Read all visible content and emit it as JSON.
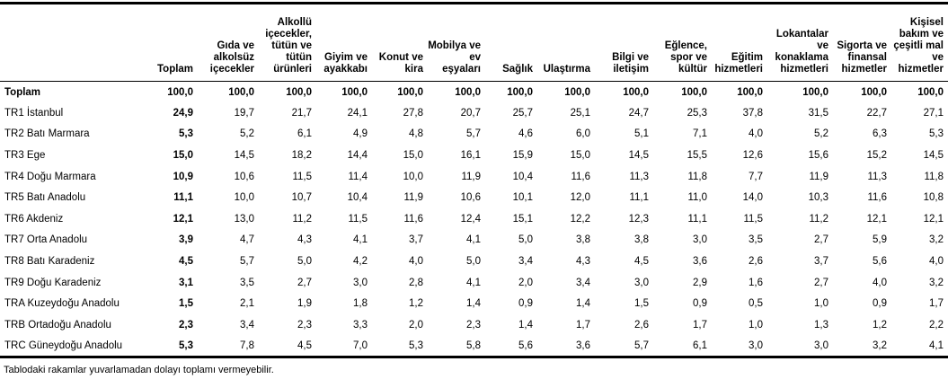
{
  "chart_data": {
    "type": "table",
    "unit": "%",
    "row_header": "",
    "columns": [
      "Toplam",
      "Gıda ve\nalkolsüz\niçecekler",
      "Alkollü\niçecekler,\ntütün ve\ntütün\nürünleri",
      "Giyim ve\nayakkabı",
      "Konut ve\nkira",
      "Mobilya ve\nev\neşyaları",
      "Sağlık",
      "Ulaştırma",
      "Bilgi ve\niletişim",
      "Eğlence,\nspor ve\nkültür",
      "Eğitim\nhizmetleri",
      "Lokantalar\nve\nkonaklama\nhizmetleri",
      "Sigorta ve\nfinansal\nhizmetler",
      "Kişisel\nbakım ve\nçeşitli mal\nve\nhizmetler"
    ],
    "rows": [
      {
        "label": "Toplam",
        "total": true,
        "values": [
          100.0,
          100.0,
          100.0,
          100.0,
          100.0,
          100.0,
          100.0,
          100.0,
          100.0,
          100.0,
          100.0,
          100.0,
          100.0,
          100.0
        ]
      },
      {
        "label": "TR1 İstanbul",
        "values": [
          24.9,
          19.7,
          21.7,
          24.1,
          27.8,
          20.7,
          25.7,
          25.1,
          24.7,
          25.3,
          37.8,
          31.5,
          22.7,
          27.1
        ]
      },
      {
        "label": "TR2 Batı Marmara",
        "values": [
          5.3,
          5.2,
          6.1,
          4.9,
          4.8,
          5.7,
          4.6,
          6.0,
          5.1,
          7.1,
          4.0,
          5.2,
          6.3,
          5.3
        ]
      },
      {
        "label": "TR3 Ege",
        "values": [
          15.0,
          14.5,
          18.2,
          14.4,
          15.0,
          16.1,
          15.9,
          15.0,
          14.5,
          15.5,
          12.6,
          15.6,
          15.2,
          14.5
        ]
      },
      {
        "label": "TR4 Doğu Marmara",
        "values": [
          10.9,
          10.6,
          11.5,
          11.4,
          10.0,
          11.9,
          10.4,
          11.6,
          11.3,
          11.8,
          7.7,
          11.9,
          11.3,
          11.8
        ]
      },
      {
        "label": "TR5 Batı Anadolu",
        "values": [
          11.1,
          10.0,
          10.7,
          10.4,
          11.9,
          10.6,
          10.1,
          12.0,
          11.1,
          11.0,
          14.0,
          10.3,
          11.6,
          10.8
        ]
      },
      {
        "label": "TR6 Akdeniz",
        "values": [
          12.1,
          13.0,
          11.2,
          11.5,
          11.6,
          12.4,
          15.1,
          12.2,
          12.3,
          11.1,
          11.5,
          11.2,
          12.1,
          12.1
        ]
      },
      {
        "label": "TR7 Orta Anadolu",
        "values": [
          3.9,
          4.7,
          4.3,
          4.1,
          3.7,
          4.1,
          5.0,
          3.8,
          3.8,
          3.0,
          3.5,
          2.7,
          5.9,
          3.2
        ]
      },
      {
        "label": "TR8 Batı Karadeniz",
        "values": [
          4.5,
          5.7,
          5.0,
          4.2,
          4.0,
          5.0,
          3.4,
          4.3,
          4.5,
          3.6,
          2.6,
          3.7,
          5.6,
          4.0
        ]
      },
      {
        "label": "TR9 Doğu Karadeniz",
        "values": [
          3.1,
          3.5,
          2.7,
          3.0,
          2.8,
          4.1,
          2.0,
          3.4,
          3.0,
          2.9,
          1.6,
          2.7,
          4.0,
          3.2
        ]
      },
      {
        "label": "TRA Kuzeydoğu Anadolu",
        "values": [
          1.5,
          2.1,
          1.9,
          1.8,
          1.2,
          1.4,
          0.9,
          1.4,
          1.5,
          0.9,
          0.5,
          1.0,
          0.9,
          1.7
        ]
      },
      {
        "label": "TRB Ortadoğu Anadolu",
        "values": [
          2.3,
          3.4,
          2.3,
          3.3,
          2.0,
          2.3,
          1.4,
          1.7,
          2.6,
          1.7,
          1.0,
          1.3,
          1.2,
          2.2
        ]
      },
      {
        "label": "TRC Güneydoğu Anadolu",
        "values": [
          5.3,
          7.8,
          4.5,
          7.0,
          5.3,
          5.8,
          5.6,
          3.6,
          5.7,
          6.1,
          3.0,
          3.0,
          3.2,
          4.1
        ]
      }
    ],
    "footnote": "Tablodaki rakamlar yuvarlamadan dolayı toplamı vermeyebilir.",
    "colors": {
      "text": "#000000",
      "background": "#ffffff",
      "border": "#000000"
    },
    "decimal_separator": ","
  }
}
